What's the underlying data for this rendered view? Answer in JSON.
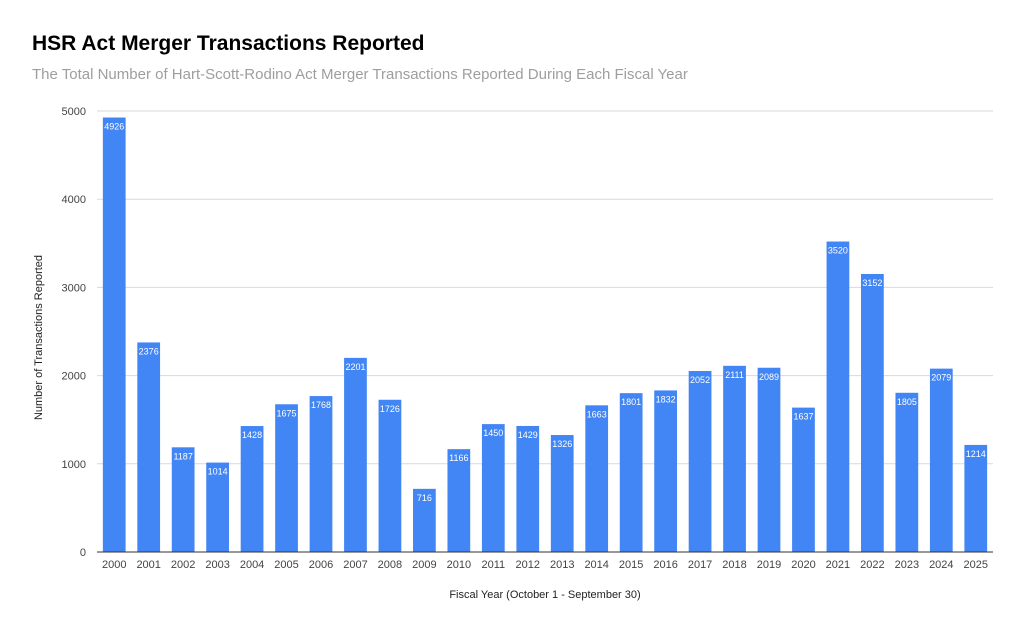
{
  "title": "HSR Act Merger Transactions Reported",
  "subtitle": "The Total Number of Hart-Scott-Rodino Act Merger Transactions Reported During Each Fiscal Year",
  "colors": {
    "bar": "#4285f4",
    "grid": "#d9d9d9",
    "axis": "#333333"
  },
  "chart_data": {
    "type": "bar",
    "title": "HSR Act Merger Transactions Reported",
    "subtitle": "The Total Number of Hart-Scott-Rodino Act Merger Transactions Reported During Each Fiscal Year",
    "xlabel": "Fiscal Year (October 1 - September 30)",
    "ylabel": "Number of Transactions Reported",
    "ylim": [
      0,
      5000
    ],
    "yticks": [
      0,
      1000,
      2000,
      3000,
      4000,
      5000
    ],
    "grid": true,
    "legend": "none",
    "categories": [
      "2000",
      "2001",
      "2002",
      "2003",
      "2004",
      "2005",
      "2006",
      "2007",
      "2008",
      "2009",
      "2010",
      "2011",
      "2012",
      "2013",
      "2014",
      "2015",
      "2016",
      "2017",
      "2018",
      "2019",
      "2020",
      "2021",
      "2022",
      "2023",
      "2024",
      "2025"
    ],
    "values": [
      4926,
      2376,
      1187,
      1014,
      1428,
      1675,
      1768,
      2201,
      1726,
      716,
      1166,
      1450,
      1429,
      1326,
      1663,
      1801,
      1832,
      2052,
      2111,
      2089,
      1637,
      3520,
      3152,
      1805,
      2079,
      1214
    ]
  }
}
